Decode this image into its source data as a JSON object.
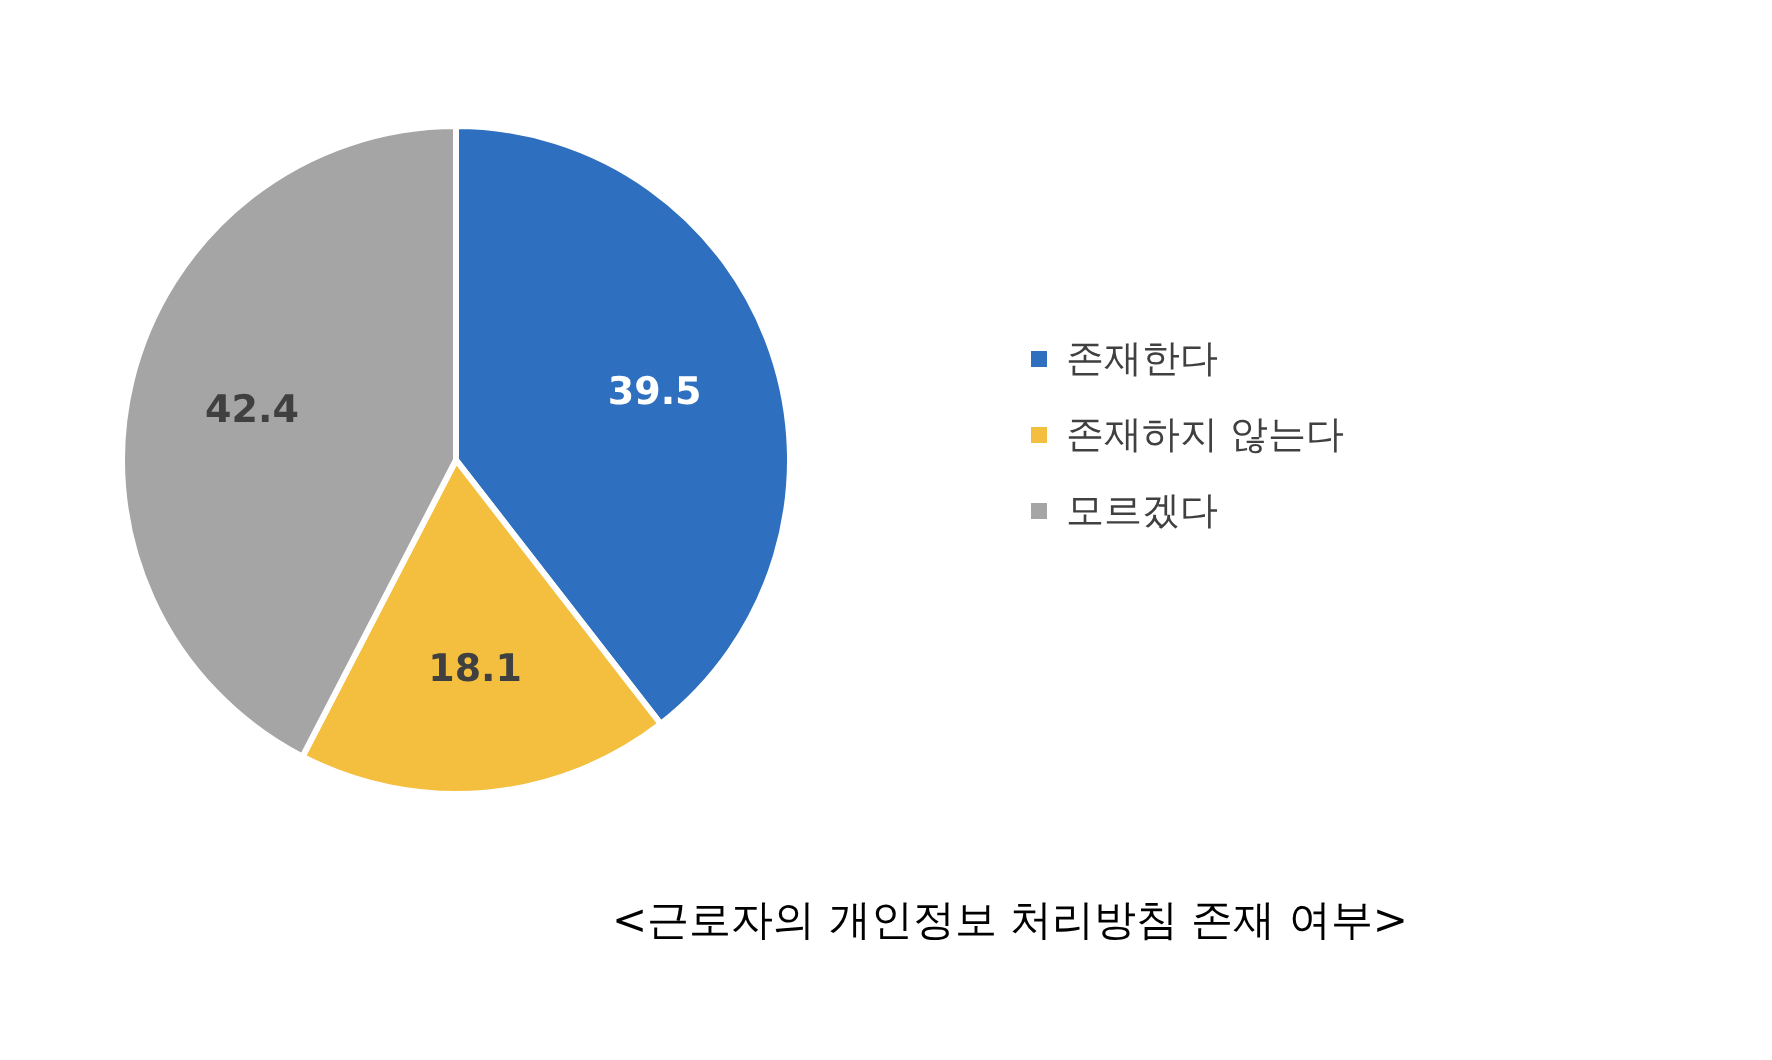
{
  "chart_data": {
    "type": "pie",
    "title": "<근로자의 개인정보 처리방침 존재 여부>",
    "categories": [
      "존재한다",
      "존재하지 않는다",
      "모르겠다"
    ],
    "values": [
      39.5,
      18.1,
      42.4
    ],
    "colors": [
      "#2e6fbf",
      "#f4bf3f",
      "#a5a5a5"
    ],
    "data_labels": true,
    "legend": "right"
  }
}
